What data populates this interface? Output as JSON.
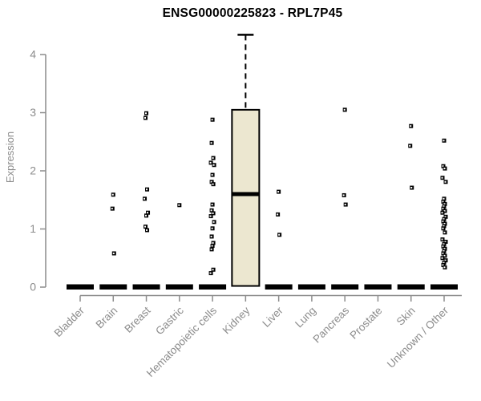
{
  "chart_data": {
    "type": "boxplot",
    "title": "ENSG00000225823 - RPL7P45",
    "ylabel": "Expression",
    "xlabel": "",
    "ylim": [
      0,
      4.4
    ],
    "yticks": [
      0,
      1,
      2,
      3,
      4
    ],
    "grid": false,
    "legend": "none",
    "colors": {
      "box_fill": "#ece7d0",
      "box_border": "#000000",
      "median": "#000000",
      "collapsed_bar": "#000000",
      "outlier": "#000000",
      "axis": "#8c8c8c",
      "title": "#000000",
      "background": "#ffffff"
    },
    "categories": [
      "Bladder",
      "Brain",
      "Breast",
      "Gastric",
      "Hematopoietic cells",
      "Kidney",
      "Liver",
      "Lung",
      "Pancreas",
      "Prostate",
      "Skin",
      "Unknown / Other"
    ],
    "series": [
      {
        "category": "Bladder",
        "q1": 0,
        "median": 0,
        "q3": 0,
        "whisker_low": 0,
        "whisker_high": 0,
        "outliers": []
      },
      {
        "category": "Brain",
        "q1": 0,
        "median": 0,
        "q3": 0,
        "whisker_low": 0,
        "whisker_high": 0,
        "outliers": [
          1.59,
          1.35,
          0.58
        ]
      },
      {
        "category": "Breast",
        "q1": 0,
        "median": 0,
        "q3": 0,
        "whisker_low": 0,
        "whisker_high": 0,
        "outliers": [
          2.99,
          2.91,
          1.68,
          1.52,
          1.28,
          1.23,
          1.04,
          0.98
        ]
      },
      {
        "category": "Gastric",
        "q1": 0,
        "median": 0,
        "q3": 0,
        "whisker_low": 0,
        "whisker_high": 0,
        "outliers": [
          1.41
        ]
      },
      {
        "category": "Hematopoietic cells",
        "q1": 0,
        "median": 0,
        "q3": 0,
        "whisker_low": 0,
        "whisker_high": 0,
        "outliers": [
          2.88,
          2.48,
          2.22,
          2.14,
          2.1,
          1.93,
          1.81,
          1.77,
          1.42,
          1.32,
          1.27,
          1.22,
          1.12,
          1.01,
          0.87,
          0.76,
          0.71,
          0.65,
          0.3,
          0.24
        ]
      },
      {
        "category": "Kidney",
        "q1": 0.02,
        "median": 1.6,
        "q3": 3.05,
        "whisker_low": 0.02,
        "whisker_high": 4.34,
        "outliers": []
      },
      {
        "category": "Liver",
        "q1": 0,
        "median": 0,
        "q3": 0,
        "whisker_low": 0,
        "whisker_high": 0,
        "outliers": [
          1.64,
          1.25,
          0.9
        ]
      },
      {
        "category": "Lung",
        "q1": 0,
        "median": 0,
        "q3": 0,
        "whisker_low": 0,
        "whisker_high": 0,
        "outliers": []
      },
      {
        "category": "Pancreas",
        "q1": 0,
        "median": 0,
        "q3": 0,
        "whisker_low": 0,
        "whisker_high": 0,
        "outliers": [
          3.05,
          1.58,
          1.42
        ]
      },
      {
        "category": "Prostate",
        "q1": 0,
        "median": 0,
        "q3": 0,
        "whisker_low": 0,
        "whisker_high": 0,
        "outliers": []
      },
      {
        "category": "Skin",
        "q1": 0,
        "median": 0,
        "q3": 0,
        "whisker_low": 0,
        "whisker_high": 0,
        "outliers": [
          2.77,
          2.43,
          1.71
        ]
      },
      {
        "category": "Unknown / Other",
        "q1": 0,
        "median": 0,
        "q3": 0,
        "whisker_low": 0,
        "whisker_high": 0,
        "outliers": [
          2.52,
          2.08,
          2.04,
          1.88,
          1.81,
          1.52,
          1.47,
          1.43,
          1.39,
          1.35,
          1.31,
          1.28,
          1.21,
          1.17,
          1.13,
          1.09,
          1.05,
          1.01,
          0.94,
          0.82,
          0.78,
          0.74,
          0.7,
          0.66,
          0.62,
          0.58,
          0.54,
          0.5,
          0.46,
          0.42,
          0.38,
          0.34
        ]
      }
    ]
  }
}
